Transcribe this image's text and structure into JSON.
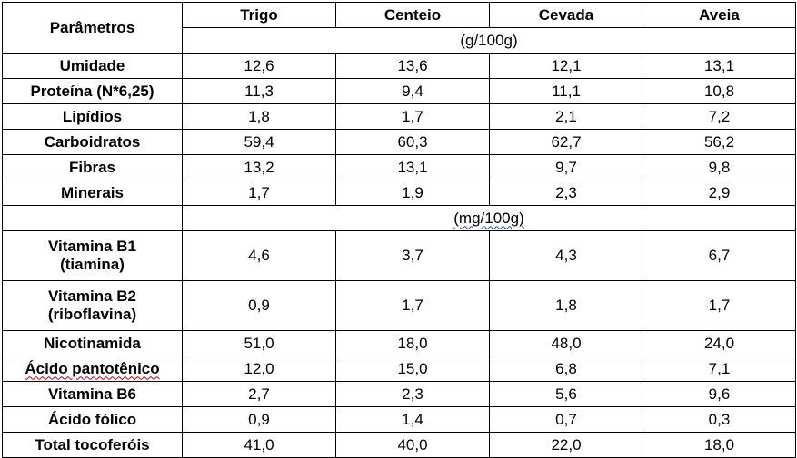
{
  "header": {
    "param_label": "Parâmetros",
    "columns": [
      "Trigo",
      "Centeio",
      "Cevada",
      "Aveia"
    ],
    "unit_g": "(g/100g)",
    "unit_mg": "(mg/100g)"
  },
  "rows_g": [
    {
      "param": "Umidade",
      "values": [
        "12,6",
        "13,6",
        "12,1",
        "13,1"
      ]
    },
    {
      "param": "Proteína (N*6,25)",
      "values": [
        "11,3",
        "9,4",
        "11,1",
        "10,8"
      ]
    },
    {
      "param": "Lipídios",
      "values": [
        "1,8",
        "1,7",
        "2,1",
        "7,2"
      ]
    },
    {
      "param": "Carboidratos",
      "values": [
        "59,4",
        "60,3",
        "62,7",
        "56,2"
      ]
    },
    {
      "param": "Fibras",
      "values": [
        "13,2",
        "13,1",
        "9,7",
        "9,8"
      ]
    },
    {
      "param": "Minerais",
      "values": [
        "1,7",
        "1,9",
        "2,3",
        "2,9"
      ]
    }
  ],
  "rows_mg": [
    {
      "param_line1": "Vitamina B1",
      "param_line2": "(tiamina)",
      "values": [
        "4,6",
        "3,7",
        "4,3",
        "6,7"
      ]
    },
    {
      "param_line1": "Vitamina B2",
      "param_line2": "(riboflavina)",
      "values": [
        "0,9",
        "1,7",
        "1,8",
        "1,7"
      ]
    },
    {
      "param": "Nicotinamida",
      "values": [
        "51,0",
        "18,0",
        "48,0",
        "24,0"
      ]
    },
    {
      "param": "Ácido pantotênico",
      "values": [
        "12,0",
        "15,0",
        "6,8",
        "7,1"
      ]
    },
    {
      "param": "Vitamina B6",
      "values": [
        "2,7",
        "2,3",
        "5,6",
        "9,6"
      ]
    },
    {
      "param": "Ácido fólico",
      "values": [
        "0,9",
        "1,4",
        "0,7",
        "0,3"
      ]
    },
    {
      "param": "Total tocoferóis",
      "values": [
        "41,0",
        "40,0",
        "22,0",
        "18,0"
      ]
    }
  ]
}
